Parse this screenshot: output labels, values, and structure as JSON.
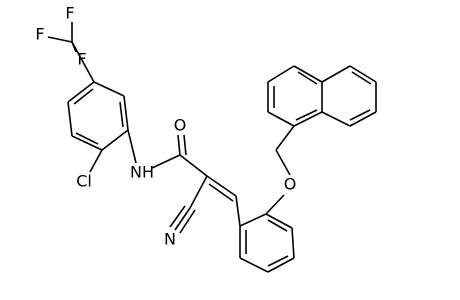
{
  "atoms": [
    {
      "label": "F"
    },
    {
      "label": "F"
    },
    {
      "label": "F"
    },
    {
      "label": "Cl"
    },
    {
      "label": "NH"
    },
    {
      "label": "O"
    },
    {
      "label": "N"
    },
    {
      "label": "O"
    }
  ]
}
